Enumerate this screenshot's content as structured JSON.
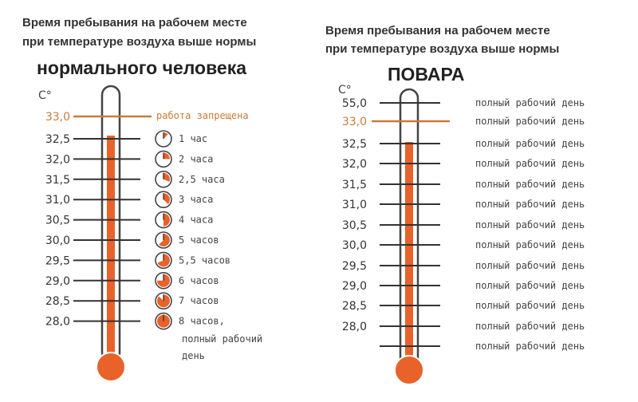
{
  "left": {
    "title_line1": "Время пребывания на рабочем месте",
    "title_line2": "при температуре воздуха выше нормы",
    "heading": "нормального человека",
    "unit": "С°",
    "threshold_value": "33,0",
    "threshold_label": "работа запрещена",
    "rows": [
      {
        "temp": "32,5",
        "label": "1 час",
        "hours": 1
      },
      {
        "temp": "32,0",
        "label": "2 часа",
        "hours": 2
      },
      {
        "temp": "31,5",
        "label": "2,5 часа",
        "hours": 2.5
      },
      {
        "temp": "31,0",
        "label": "3 часа",
        "hours": 3
      },
      {
        "temp": "30,5",
        "label": "4 часа",
        "hours": 4
      },
      {
        "temp": "30,0",
        "label": "5 часов",
        "hours": 5
      },
      {
        "temp": "29,5",
        "label": "5,5 часов",
        "hours": 5.5
      },
      {
        "temp": "29,0",
        "label": "6 часов",
        "hours": 6
      },
      {
        "temp": "28,5",
        "label": "7 часов",
        "hours": 7
      },
      {
        "temp": "28,0",
        "label": "8 часов,",
        "hours": 8
      }
    ],
    "last_extra_line1": "полный рабочий",
    "last_extra_line2": "день"
  },
  "right": {
    "title_line1": "Время пребывания на рабочем месте",
    "title_line2": "при температуре воздуха выше нормы",
    "heading": "ПОВАРА",
    "unit": "С°",
    "threshold_value": "33,0",
    "top_value": "55,0",
    "rows": [
      {
        "temp": "55,0",
        "label": "полный рабочий день"
      },
      {
        "temp": "33,0",
        "label": "полный рабочий день"
      },
      {
        "temp": "32,5",
        "label": "полный рабочий день"
      },
      {
        "temp": "32,0",
        "label": "полный рабочий день"
      },
      {
        "temp": "31,5",
        "label": "полный рабочий день"
      },
      {
        "temp": "31,0",
        "label": "полный рабочий день"
      },
      {
        "temp": "30,5",
        "label": "полный рабочий день"
      },
      {
        "temp": "30,0",
        "label": "полный рабочий день"
      },
      {
        "temp": "29,5",
        "label": "полный рабочий день"
      },
      {
        "temp": "29,0",
        "label": "полный рабочий день"
      },
      {
        "temp": "28,5",
        "label": "полный рабочий день"
      },
      {
        "temp": "28,0",
        "label": "полный рабочий день"
      },
      {
        "temp": "",
        "label": "полный рабочий день"
      }
    ]
  },
  "colors": {
    "mercury": "#e8622a",
    "threshold": "#c97a3a",
    "text": "#333333",
    "label": "#444444"
  }
}
